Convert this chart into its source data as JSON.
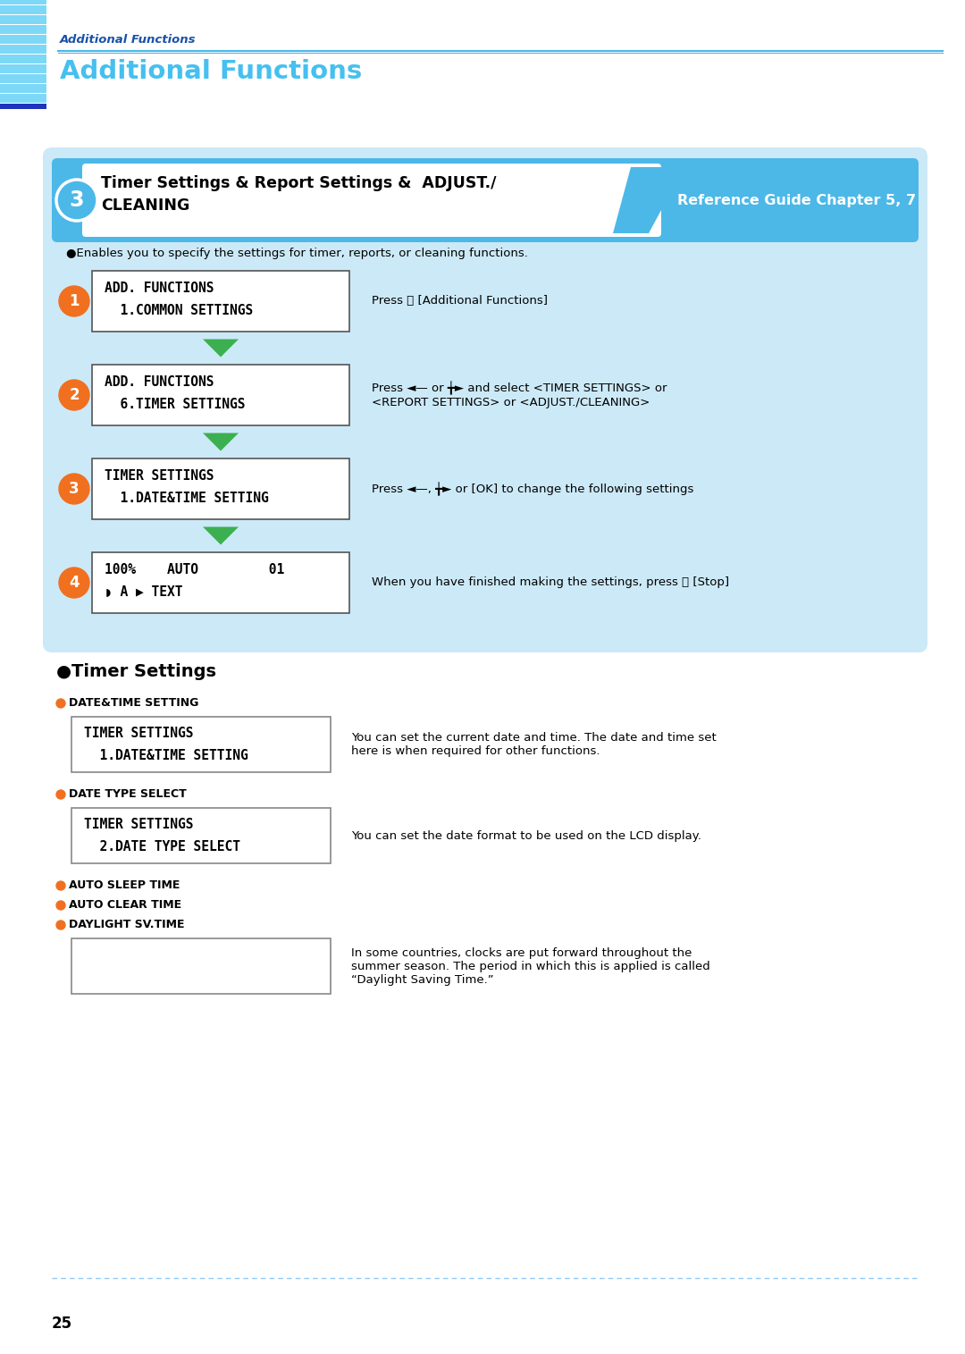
{
  "page_title_italic": "Additional Functions",
  "page_title_main": "Additional Functions",
  "page_number": "25",
  "section_number": "3",
  "section_title_line1": "Timer Settings & Report Settings &  ADJUST./",
  "section_title_line2": "CLEANING",
  "section_ref": "Reference Guide Chapter 5, 7",
  "intro_text": "●Enables you to specify the settings for timer, reports, or cleaning functions.",
  "steps": [
    {
      "num": "1",
      "lcd_line1": "ADD. FUNCTIONS",
      "lcd_line2": "  1.COMMON SETTINGS",
      "desc": "Press Ⓡ [Additional Functions]"
    },
    {
      "num": "2",
      "lcd_line1": "ADD. FUNCTIONS",
      "lcd_line2": "  6.TIMER SETTINGS",
      "desc": "Press ◄— or ╈► and select <TIMER SETTINGS> or\n<REPORT SETTINGS> or <ADJUST./CLEANING>"
    },
    {
      "num": "3",
      "lcd_line1": "TIMER SETTINGS",
      "lcd_line2": "  1.DATE&TIME SETTING",
      "desc": "Press ◄—, ╈► or [OK] to change the following settings"
    },
    {
      "num": "4",
      "lcd_line1": "100%    AUTO         01",
      "lcd_line2": "◗ A ▶ TEXT",
      "desc": "When you have finished making the settings, press Ⓢ [Stop]"
    }
  ],
  "timer_section_title": "●Timer Settings",
  "timer_items": [
    {
      "bullet": "●DATE&TIME SETTING",
      "lcd_line1": "TIMER SETTINGS",
      "lcd_line2": "  1.DATE&TIME SETTING",
      "desc": "You can set the current date and time. The date and time set\nhere is when required for other functions."
    },
    {
      "bullet": "●DATE TYPE SELECT",
      "lcd_line1": "TIMER SETTINGS",
      "lcd_line2": "  2.DATE TYPE SELECT",
      "desc": "You can set the date format to be used on the LCD display."
    }
  ],
  "timer_items2": [
    {
      "bullet": "●AUTO SLEEP TIME",
      "has_box": false,
      "desc": ""
    },
    {
      "bullet": "●AUTO CLEAR TIME",
      "has_box": false,
      "desc": ""
    },
    {
      "bullet": "●DAYLIGHT SV.TIME",
      "has_box": true,
      "desc": "In some countries, clocks are put forward throughout the\nsummer season. The period in which this is applied is called\n“Daylight Saving Time.”"
    }
  ],
  "colors": {
    "light_blue_bg": "#cce9f7",
    "medium_blue": "#4cb8e8",
    "dark_blue": "#1a52a8",
    "orange": "#f07020",
    "green_arrow": "#3cb050",
    "white": "#ffffff",
    "black": "#000000",
    "header_italic_color": "#1a52a8",
    "header_main_color": "#45c0f0",
    "stripe_light": "#7dd8f8",
    "stripe_dark": "#2244bb",
    "dashed_line": "#90caf9"
  }
}
